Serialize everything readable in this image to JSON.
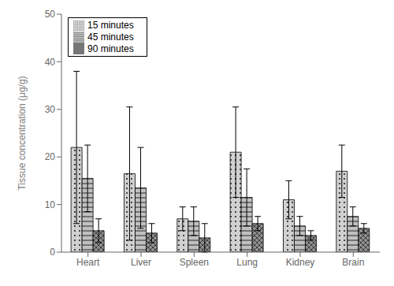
{
  "chart_data": {
    "type": "bar",
    "categories": [
      "Heart",
      "Liver",
      "Spleen",
      "Lung",
      "Kidney",
      "Brain"
    ],
    "series": [
      {
        "name": "15 minutes",
        "color": "#d0d0d0",
        "values": [
          22,
          16.5,
          7,
          21,
          11,
          17
        ],
        "errors": [
          16,
          14,
          2.5,
          9.5,
          4,
          5.5
        ]
      },
      {
        "name": "45 minutes",
        "color": "#c0c0c0",
        "values": [
          15.5,
          13.5,
          6.5,
          11.5,
          5.5,
          7.5
        ],
        "errors": [
          7,
          8.5,
          3,
          6,
          2,
          2
        ]
      },
      {
        "name": "90 minutes",
        "color": "#909090",
        "values": [
          4.5,
          4,
          3,
          6,
          3.5,
          5
        ],
        "errors": [
          2.5,
          2,
          3,
          1.5,
          1,
          1
        ]
      }
    ],
    "ylabel": "Tissue concentration (μg/g)",
    "ylim": [
      0,
      50
    ],
    "yticks": [
      0,
      10,
      20,
      30,
      40,
      50
    ],
    "legend": "upper left"
  }
}
